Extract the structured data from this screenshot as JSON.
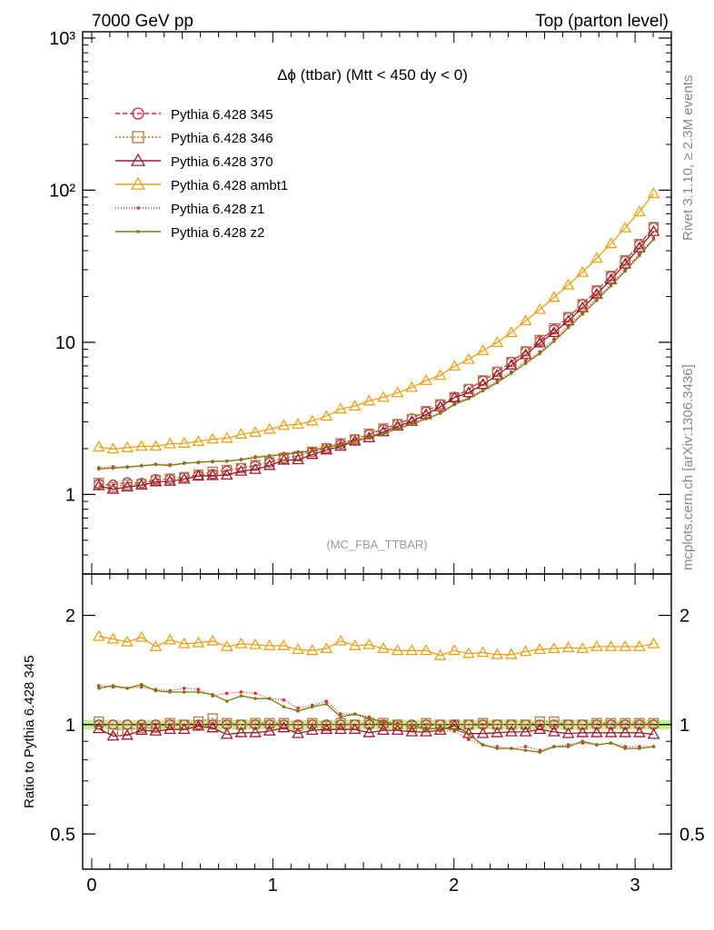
{
  "header": {
    "left": "7000 GeV pp",
    "right": "Top (parton level)"
  },
  "side": {
    "rivet": "Rivet 3.1.10, ≥ 2.3M events",
    "mcplots": "mcplots.cern.ch [arXiv:1306.3436]"
  },
  "chart_data": {
    "type": "line",
    "title": "Δϕ (ttbar) (Mtt < 450 dy < 0)",
    "watermark": "(MC_FBA_TTBAR)",
    "main": {
      "yscale": "log",
      "ylim": [
        0.3,
        1100
      ],
      "yticks": [
        {
          "v": 1,
          "label": "1"
        },
        {
          "v": 10,
          "label": "10"
        },
        {
          "v": 100,
          "label": "10²"
        },
        {
          "v": 1000,
          "label": "10³"
        }
      ]
    },
    "ratio": {
      "ylabel": "Ratio to Pythia 6.428 345",
      "yscale": "log",
      "ylim": [
        0.4,
        2.6
      ],
      "yticks": [
        {
          "v": 0.5,
          "label": "0.5"
        },
        {
          "v": 1,
          "label": "1"
        },
        {
          "v": 2,
          "label": "2"
        }
      ],
      "band": [
        0.97,
        1.03
      ]
    },
    "xlim": [
      -0.05,
      3.2
    ],
    "xticks": [
      {
        "v": 0,
        "label": "0"
      },
      {
        "v": 1,
        "label": "1"
      },
      {
        "v": 2,
        "label": "2"
      },
      {
        "v": 3,
        "label": "3"
      }
    ],
    "x": [
      0.0393,
      0.1178,
      0.1963,
      0.2749,
      0.3534,
      0.432,
      0.5105,
      0.589,
      0.6676,
      0.7461,
      0.8247,
      0.9032,
      0.9817,
      1.0603,
      1.1388,
      1.2174,
      1.2959,
      1.3744,
      1.453,
      1.5315,
      1.6101,
      1.6886,
      1.7671,
      1.8457,
      1.9242,
      2.0028,
      2.0813,
      2.1598,
      2.2384,
      2.3169,
      2.3955,
      2.474,
      2.5525,
      2.6311,
      2.7096,
      2.7882,
      2.8667,
      2.9452,
      3.0238,
      3.1023
    ],
    "series": [
      {
        "name": "Pythia 6.428 345",
        "color": "#c8264d",
        "dash": "5,3",
        "marker": "circle",
        "values": [
          1.17,
          1.16,
          1.2,
          1.19,
          1.26,
          1.26,
          1.3,
          1.33,
          1.36,
          1.43,
          1.49,
          1.54,
          1.62,
          1.72,
          1.79,
          1.9,
          2.02,
          2.14,
          2.31,
          2.48,
          2.68,
          2.91,
          3.16,
          3.51,
          3.91,
          4.36,
          4.93,
          5.59,
          6.4,
          7.43,
          8.7,
          10.22,
          12.16,
          14.6,
          17.76,
          21.8,
          27.18,
          34.42,
          44.0,
          56.95
        ],
        "ratio": [
          1,
          1,
          1,
          1,
          1,
          1,
          1,
          1,
          1,
          1,
          1,
          1,
          1,
          1,
          1,
          1,
          1,
          1,
          1,
          1,
          1,
          1,
          1,
          1,
          1,
          1,
          1,
          1,
          1,
          1,
          1,
          1,
          1,
          1,
          1,
          1,
          1,
          1,
          1,
          1
        ]
      },
      {
        "name": "Pythia 6.428 346",
        "color": "#b07a44",
        "dash": "2,2",
        "marker": "square",
        "values": [
          1.19,
          1.12,
          1.16,
          1.17,
          1.24,
          1.27,
          1.3,
          1.35,
          1.41,
          1.45,
          1.49,
          1.56,
          1.63,
          1.74,
          1.78,
          1.91,
          2.01,
          2.17,
          2.3,
          2.51,
          2.71,
          2.9,
          3.13,
          3.53,
          3.91,
          4.36,
          4.93,
          5.62,
          6.4,
          7.43,
          8.72,
          10.36,
          12.36,
          14.66,
          17.82,
          21.93,
          27.35,
          34.62,
          44.27,
          57.3
        ],
        "ratio": [
          1.02,
          0.97,
          0.97,
          0.98,
          0.98,
          1.01,
          1.0,
          1.02,
          1.04,
          1.01,
          1.0,
          1.01,
          1.01,
          1.01,
          0.99,
          1.01,
          0.99,
          1.01,
          1.0,
          1.01,
          1.01,
          1.0,
          0.99,
          1.01,
          1.0,
          1.0,
          1.0,
          1.01,
          1.0,
          1.0,
          1.0,
          1.02,
          1.02,
          1.0,
          1.0,
          1.01,
          1.01,
          1.01,
          1.01,
          1.01
        ]
      },
      {
        "name": "Pythia 6.428 370",
        "color": "#9b1b30",
        "dash": "",
        "marker": "triangle-open",
        "values": [
          1.14,
          1.08,
          1.12,
          1.15,
          1.21,
          1.22,
          1.26,
          1.32,
          1.33,
          1.34,
          1.42,
          1.46,
          1.55,
          1.68,
          1.69,
          1.83,
          1.96,
          2.07,
          2.24,
          2.36,
          2.58,
          2.81,
          3.02,
          3.35,
          3.77,
          4.33,
          4.67,
          5.28,
          6.09,
          7.09,
          8.29,
          9.91,
          11.6,
          13.83,
          16.88,
          20.72,
          25.82,
          32.7,
          41.8,
          53.53
        ],
        "ratio": [
          0.975,
          0.93,
          0.935,
          0.965,
          0.96,
          0.97,
          0.97,
          0.99,
          0.98,
          0.94,
          0.95,
          0.95,
          0.96,
          0.98,
          0.945,
          0.965,
          0.97,
          0.97,
          0.97,
          0.95,
          0.965,
          0.965,
          0.955,
          0.955,
          0.965,
          0.995,
          0.945,
          0.945,
          0.95,
          0.955,
          0.955,
          0.97,
          0.955,
          0.945,
          0.95,
          0.95,
          0.95,
          0.95,
          0.95,
          0.94
        ]
      },
      {
        "name": "Pythia 6.428 ambt1",
        "color": "#e8a21a",
        "dash": "",
        "marker": "triangle-open",
        "values": [
          2.05,
          1.99,
          2.03,
          2.07,
          2.07,
          2.15,
          2.17,
          2.23,
          2.31,
          2.34,
          2.49,
          2.56,
          2.68,
          2.84,
          2.89,
          3.04,
          3.27,
          3.64,
          3.81,
          4.12,
          4.35,
          4.66,
          5.05,
          5.61,
          6.06,
          6.96,
          7.72,
          8.81,
          9.97,
          11.59,
          13.84,
          16.44,
          19.74,
          23.83,
          28.84,
          35.7,
          44.49,
          56.46,
          72.1,
          94.96
        ],
        "ratio": [
          1.75,
          1.72,
          1.69,
          1.74,
          1.64,
          1.71,
          1.67,
          1.68,
          1.7,
          1.64,
          1.67,
          1.66,
          1.65,
          1.65,
          1.61,
          1.6,
          1.62,
          1.7,
          1.65,
          1.66,
          1.62,
          1.6,
          1.6,
          1.6,
          1.55,
          1.6,
          1.57,
          1.58,
          1.56,
          1.56,
          1.59,
          1.61,
          1.62,
          1.63,
          1.62,
          1.64,
          1.64,
          1.64,
          1.64,
          1.67
        ]
      },
      {
        "name": "Pythia 6.428 z1",
        "color": "#e0302b",
        "dash": "1,2",
        "marker": "dot",
        "values": [
          1.5,
          1.52,
          1.52,
          1.55,
          1.58,
          1.57,
          1.61,
          1.62,
          1.64,
          1.65,
          1.7,
          1.77,
          1.8,
          1.86,
          1.9,
          1.98,
          2.08,
          2.18,
          2.28,
          2.41,
          2.53,
          2.73,
          2.94,
          3.17,
          3.47,
          3.97,
          4.34,
          4.91,
          5.58,
          6.4,
          7.53,
          8.64,
          10.51,
          12.94,
          15.8,
          19.54,
          24.19,
          30.22,
          38.23,
          48.69
        ],
        "ratio": [
          1.28,
          1.27,
          1.26,
          1.27,
          1.25,
          1.24,
          1.26,
          1.25,
          1.2,
          1.22,
          1.23,
          1.22,
          1.18,
          1.17,
          1.11,
          1.13,
          1.16,
          1.07,
          1.07,
          1.05,
          1.01,
          1.01,
          0.99,
          0.96,
          0.96,
          0.96,
          0.91,
          0.88,
          0.87,
          0.86,
          0.87,
          0.85,
          0.87,
          0.88,
          0.89,
          0.88,
          0.89,
          0.87,
          0.87,
          0.87
        ]
      },
      {
        "name": "Pythia 6.428 z2",
        "color": "#7d7a10",
        "dash": "",
        "marker": "dot",
        "values": [
          1.47,
          1.49,
          1.51,
          1.54,
          1.57,
          1.55,
          1.6,
          1.63,
          1.65,
          1.66,
          1.69,
          1.75,
          1.79,
          1.83,
          1.88,
          1.93,
          2.05,
          2.12,
          2.24,
          2.37,
          2.51,
          2.71,
          2.89,
          3.14,
          3.41,
          3.9,
          4.26,
          4.8,
          5.43,
          6.26,
          7.27,
          8.43,
          10.16,
          12.47,
          15.33,
          18.84,
          23.51,
          29.38,
          37.24,
          47.67
        ],
        "ratio": [
          1.26,
          1.28,
          1.26,
          1.29,
          1.24,
          1.23,
          1.23,
          1.23,
          1.21,
          1.16,
          1.2,
          1.18,
          1.18,
          1.12,
          1.09,
          1.12,
          1.14,
          1.05,
          1.07,
          1.04,
          1.02,
          1.0,
          1.0,
          0.97,
          0.98,
          0.97,
          0.94,
          0.88,
          0.86,
          0.86,
          0.85,
          0.84,
          0.87,
          0.87,
          0.9,
          0.88,
          0.89,
          0.86,
          0.86,
          0.87
        ]
      }
    ]
  }
}
